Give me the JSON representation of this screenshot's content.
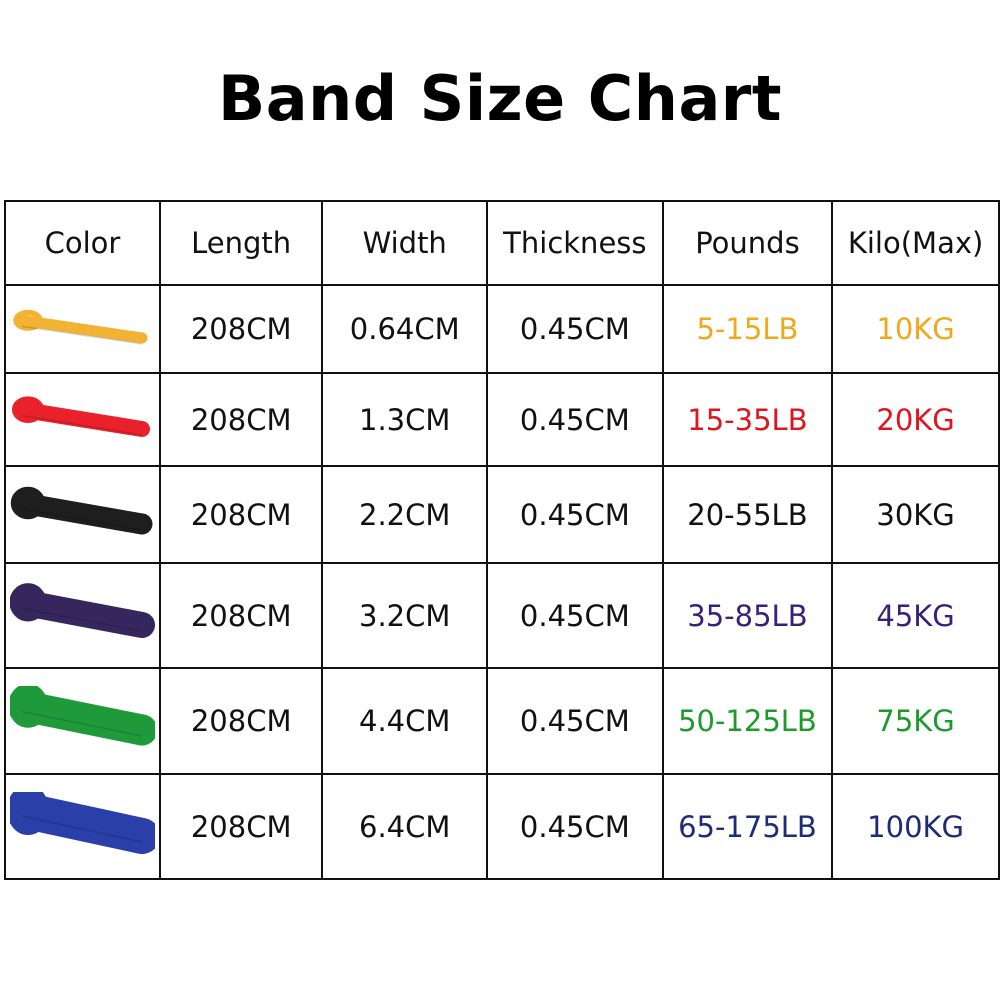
{
  "title": "Band Size Chart",
  "headers": [
    "Color",
    "Length",
    "Width",
    "Thickness",
    "Pounds",
    "Kilo(Max)"
  ],
  "rows": [
    {
      "band_color": "#f2b233",
      "band_name": "yellow-band",
      "length": "208CM",
      "width": "0.64CM",
      "thickness": "0.45CM",
      "pounds": "5-15LB",
      "kilo": "10KG",
      "text_color": "#f0a81c",
      "band_thickness": 1
    },
    {
      "band_color": "#e8212a",
      "band_name": "red-band",
      "length": "208CM",
      "width": "1.3CM",
      "thickness": "0.45CM",
      "pounds": "15-35LB",
      "kilo": "20KG",
      "text_color": "#e0141e",
      "band_thickness": 2
    },
    {
      "band_color": "#1e1e1e",
      "band_name": "black-band",
      "length": "208CM",
      "width": "2.2CM",
      "thickness": "0.45CM",
      "pounds": "20-55LB",
      "kilo": "30KG",
      "text_color": "#111111",
      "band_thickness": 3
    },
    {
      "band_color": "#35265e",
      "band_name": "purple-band",
      "length": "208CM",
      "width": "3.2CM",
      "thickness": "0.45CM",
      "pounds": "35-85LB",
      "kilo": "45KG",
      "text_color": "#3a1f7a",
      "band_thickness": 4
    },
    {
      "band_color": "#1f9a3a",
      "band_name": "green-band",
      "length": "208CM",
      "width": "4.4CM",
      "thickness": "0.45CM",
      "pounds": "50-125LB",
      "kilo": "75KG",
      "text_color": "#1d9a2c",
      "band_thickness": 5
    },
    {
      "band_color": "#2a3fa8",
      "band_name": "blue-band",
      "length": "208CM",
      "width": "6.4CM",
      "thickness": "0.45CM",
      "pounds": "65-175LB",
      "kilo": "100KG",
      "text_color": "#1e2a7a",
      "band_thickness": 6
    }
  ]
}
